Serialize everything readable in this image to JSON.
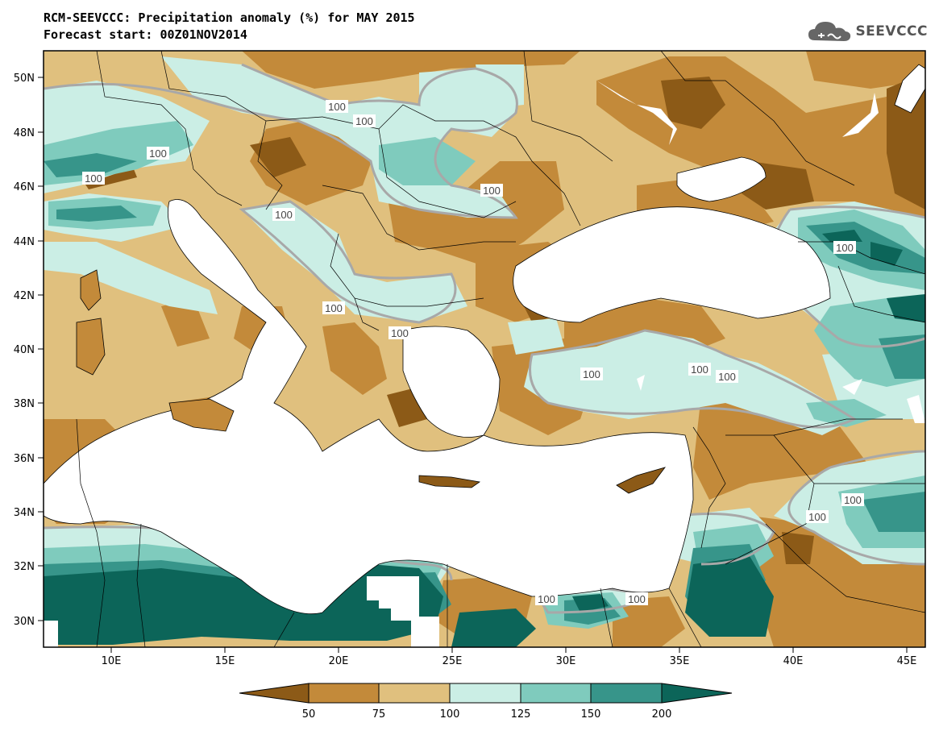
{
  "title": {
    "line1": "RCM-SEEVCCC: Precipitation anomaly (%) for MAY 2015",
    "line2": "Forecast start: 00Z01NOV2014"
  },
  "logo": {
    "text": "SEEVCCC",
    "icon": "cloud-icon"
  },
  "map": {
    "lat_labels": [
      "50N",
      "48N",
      "46N",
      "44N",
      "42N",
      "40N",
      "38N",
      "36N",
      "34N",
      "32N",
      "30N"
    ],
    "lon_labels": [
      "10E",
      "15E",
      "20E",
      "25E",
      "30E",
      "35E",
      "40E",
      "45E"
    ],
    "contour_labels": [
      "100",
      "100",
      "100",
      "100",
      "100",
      "100",
      "100",
      "100",
      "100",
      "100",
      "100",
      "100",
      "100",
      "100",
      "100",
      "100"
    ]
  },
  "legend": {
    "ticks": [
      "50",
      "75",
      "100",
      "125",
      "150",
      "200"
    ],
    "colors": [
      "#8c5a17",
      "#c38a3a",
      "#e0c07e",
      "#cbeee5",
      "#7fcbbd",
      "#37958a",
      "#0c6559"
    ]
  },
  "colors": {
    "dry_dark": "#8c5a17",
    "dry": "#c38a3a",
    "dry_light": "#e0c07e",
    "wet_light": "#cbeee5",
    "wet": "#7fcbbd",
    "wet_dark": "#37958a",
    "wet_darkest": "#0c6559",
    "contour": "#a8a8a8"
  }
}
